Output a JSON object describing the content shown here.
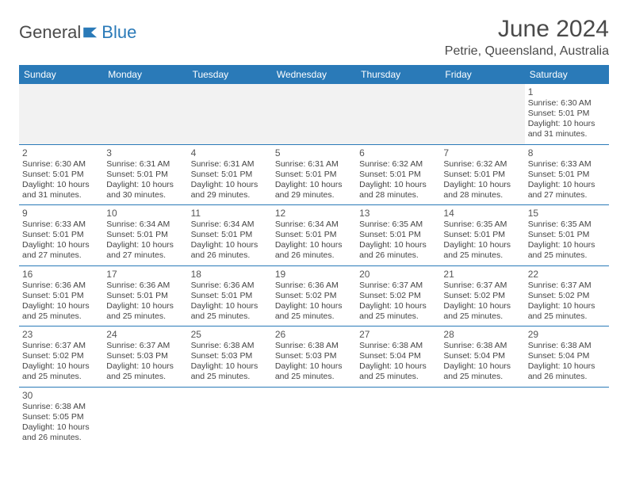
{
  "logo": {
    "text1": "General",
    "text2": "Blue"
  },
  "title": "June 2024",
  "location": "Petrie, Queensland, Australia",
  "colors": {
    "header_bg": "#2a7ab8",
    "header_fg": "#ffffff",
    "blank_bg": "#f2f2f2",
    "border": "#2a7ab8",
    "text": "#444444",
    "title_color": "#4a4a4a"
  },
  "fonts": {
    "title_size": 30,
    "location_size": 16,
    "dayheader_size": 12,
    "daynum_size": 12,
    "body_size": 10.5
  },
  "dayNames": [
    "Sunday",
    "Monday",
    "Tuesday",
    "Wednesday",
    "Thursday",
    "Friday",
    "Saturday"
  ],
  "weeks": [
    [
      null,
      null,
      null,
      null,
      null,
      null,
      {
        "n": "1",
        "rise": "Sunrise: 6:30 AM",
        "set": "Sunset: 5:01 PM",
        "d1": "Daylight: 10 hours",
        "d2": "and 31 minutes."
      }
    ],
    [
      {
        "n": "2",
        "rise": "Sunrise: 6:30 AM",
        "set": "Sunset: 5:01 PM",
        "d1": "Daylight: 10 hours",
        "d2": "and 31 minutes."
      },
      {
        "n": "3",
        "rise": "Sunrise: 6:31 AM",
        "set": "Sunset: 5:01 PM",
        "d1": "Daylight: 10 hours",
        "d2": "and 30 minutes."
      },
      {
        "n": "4",
        "rise": "Sunrise: 6:31 AM",
        "set": "Sunset: 5:01 PM",
        "d1": "Daylight: 10 hours",
        "d2": "and 29 minutes."
      },
      {
        "n": "5",
        "rise": "Sunrise: 6:31 AM",
        "set": "Sunset: 5:01 PM",
        "d1": "Daylight: 10 hours",
        "d2": "and 29 minutes."
      },
      {
        "n": "6",
        "rise": "Sunrise: 6:32 AM",
        "set": "Sunset: 5:01 PM",
        "d1": "Daylight: 10 hours",
        "d2": "and 28 minutes."
      },
      {
        "n": "7",
        "rise": "Sunrise: 6:32 AM",
        "set": "Sunset: 5:01 PM",
        "d1": "Daylight: 10 hours",
        "d2": "and 28 minutes."
      },
      {
        "n": "8",
        "rise": "Sunrise: 6:33 AM",
        "set": "Sunset: 5:01 PM",
        "d1": "Daylight: 10 hours",
        "d2": "and 27 minutes."
      }
    ],
    [
      {
        "n": "9",
        "rise": "Sunrise: 6:33 AM",
        "set": "Sunset: 5:01 PM",
        "d1": "Daylight: 10 hours",
        "d2": "and 27 minutes."
      },
      {
        "n": "10",
        "rise": "Sunrise: 6:34 AM",
        "set": "Sunset: 5:01 PM",
        "d1": "Daylight: 10 hours",
        "d2": "and 27 minutes."
      },
      {
        "n": "11",
        "rise": "Sunrise: 6:34 AM",
        "set": "Sunset: 5:01 PM",
        "d1": "Daylight: 10 hours",
        "d2": "and 26 minutes."
      },
      {
        "n": "12",
        "rise": "Sunrise: 6:34 AM",
        "set": "Sunset: 5:01 PM",
        "d1": "Daylight: 10 hours",
        "d2": "and 26 minutes."
      },
      {
        "n": "13",
        "rise": "Sunrise: 6:35 AM",
        "set": "Sunset: 5:01 PM",
        "d1": "Daylight: 10 hours",
        "d2": "and 26 minutes."
      },
      {
        "n": "14",
        "rise": "Sunrise: 6:35 AM",
        "set": "Sunset: 5:01 PM",
        "d1": "Daylight: 10 hours",
        "d2": "and 25 minutes."
      },
      {
        "n": "15",
        "rise": "Sunrise: 6:35 AM",
        "set": "Sunset: 5:01 PM",
        "d1": "Daylight: 10 hours",
        "d2": "and 25 minutes."
      }
    ],
    [
      {
        "n": "16",
        "rise": "Sunrise: 6:36 AM",
        "set": "Sunset: 5:01 PM",
        "d1": "Daylight: 10 hours",
        "d2": "and 25 minutes."
      },
      {
        "n": "17",
        "rise": "Sunrise: 6:36 AM",
        "set": "Sunset: 5:01 PM",
        "d1": "Daylight: 10 hours",
        "d2": "and 25 minutes."
      },
      {
        "n": "18",
        "rise": "Sunrise: 6:36 AM",
        "set": "Sunset: 5:01 PM",
        "d1": "Daylight: 10 hours",
        "d2": "and 25 minutes."
      },
      {
        "n": "19",
        "rise": "Sunrise: 6:36 AM",
        "set": "Sunset: 5:02 PM",
        "d1": "Daylight: 10 hours",
        "d2": "and 25 minutes."
      },
      {
        "n": "20",
        "rise": "Sunrise: 6:37 AM",
        "set": "Sunset: 5:02 PM",
        "d1": "Daylight: 10 hours",
        "d2": "and 25 minutes."
      },
      {
        "n": "21",
        "rise": "Sunrise: 6:37 AM",
        "set": "Sunset: 5:02 PM",
        "d1": "Daylight: 10 hours",
        "d2": "and 25 minutes."
      },
      {
        "n": "22",
        "rise": "Sunrise: 6:37 AM",
        "set": "Sunset: 5:02 PM",
        "d1": "Daylight: 10 hours",
        "d2": "and 25 minutes."
      }
    ],
    [
      {
        "n": "23",
        "rise": "Sunrise: 6:37 AM",
        "set": "Sunset: 5:02 PM",
        "d1": "Daylight: 10 hours",
        "d2": "and 25 minutes."
      },
      {
        "n": "24",
        "rise": "Sunrise: 6:37 AM",
        "set": "Sunset: 5:03 PM",
        "d1": "Daylight: 10 hours",
        "d2": "and 25 minutes."
      },
      {
        "n": "25",
        "rise": "Sunrise: 6:38 AM",
        "set": "Sunset: 5:03 PM",
        "d1": "Daylight: 10 hours",
        "d2": "and 25 minutes."
      },
      {
        "n": "26",
        "rise": "Sunrise: 6:38 AM",
        "set": "Sunset: 5:03 PM",
        "d1": "Daylight: 10 hours",
        "d2": "and 25 minutes."
      },
      {
        "n": "27",
        "rise": "Sunrise: 6:38 AM",
        "set": "Sunset: 5:04 PM",
        "d1": "Daylight: 10 hours",
        "d2": "and 25 minutes."
      },
      {
        "n": "28",
        "rise": "Sunrise: 6:38 AM",
        "set": "Sunset: 5:04 PM",
        "d1": "Daylight: 10 hours",
        "d2": "and 25 minutes."
      },
      {
        "n": "29",
        "rise": "Sunrise: 6:38 AM",
        "set": "Sunset: 5:04 PM",
        "d1": "Daylight: 10 hours",
        "d2": "and 26 minutes."
      }
    ],
    [
      {
        "n": "30",
        "rise": "Sunrise: 6:38 AM",
        "set": "Sunset: 5:05 PM",
        "d1": "Daylight: 10 hours",
        "d2": "and 26 minutes."
      },
      null,
      null,
      null,
      null,
      null,
      null
    ]
  ]
}
